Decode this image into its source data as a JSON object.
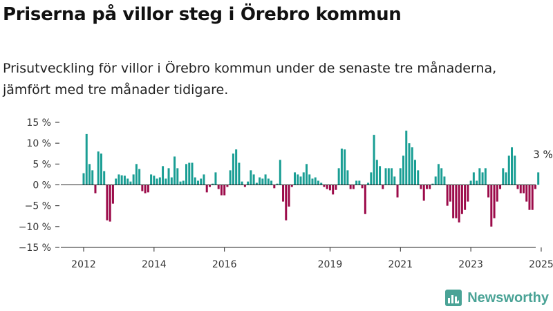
{
  "header": {
    "title": "Priserna på villor steg i Örebro kommun",
    "subtitle": "Prisutveckling för villor i Örebro kommun under de senaste tre månaderna, jämfört med tre månader tidigare."
  },
  "brand": {
    "name": "Newsworthy",
    "icon": "newsworthy-bar-chart-icon"
  },
  "colors": {
    "positive": "#1a9e94",
    "negative": "#9c0b4a",
    "axis": "#222222",
    "annotation": "#222222"
  },
  "chart_data": {
    "type": "bar",
    "x_start": "2012-01",
    "x_end": "2025-02",
    "y_range": [
      -15,
      15
    ],
    "y_ticks": [
      "15 %",
      "10 %",
      "5 %",
      "0 %",
      "−5 %",
      "−10 %",
      "−15 %"
    ],
    "y_tick_values": [
      15,
      10,
      5,
      0,
      -5,
      -10,
      -15
    ],
    "x_ticks": [
      {
        "label": "2012",
        "date": "2012-01"
      },
      {
        "label": "2014",
        "date": "2014-01"
      },
      {
        "label": "2016",
        "date": "2016-01"
      },
      {
        "label": "2019",
        "date": "2019-01"
      },
      {
        "label": "2021",
        "date": "2021-01"
      },
      {
        "label": "2023",
        "date": "2023-01"
      },
      {
        "label": "2025",
        "date": "2025-01"
      }
    ],
    "grid": false,
    "annotation": {
      "text": "3 %",
      "date": "2025-02",
      "value": 3
    },
    "values": [
      2.8,
      12.2,
      5.0,
      3.5,
      -2.0,
      8.0,
      7.5,
      3.3,
      -8.5,
      -8.8,
      -4.5,
      1.5,
      2.5,
      2.3,
      2.2,
      1.5,
      0.8,
      2.5,
      5.0,
      3.8,
      -1.5,
      -2.0,
      -1.8,
      2.5,
      2.2,
      1.5,
      1.8,
      4.5,
      1.5,
      4.0,
      1.8,
      6.8,
      4.0,
      0.8,
      1.0,
      5.0,
      5.3,
      5.3,
      1.8,
      1.0,
      1.5,
      2.5,
      -1.8,
      -0.5,
      0.3,
      3.0,
      -1.0,
      -2.5,
      -2.5,
      -0.5,
      3.5,
      7.5,
      8.5,
      5.3,
      0.8,
      -0.5,
      0.8,
      3.5,
      2.5,
      0.5,
      1.8,
      1.5,
      2.5,
      1.5,
      1.0,
      -0.8,
      0.3,
      6.0,
      -4.0,
      -8.5,
      -5.2,
      -0.5,
      3.0,
      2.5,
      2.0,
      3.0,
      5.0,
      2.5,
      1.5,
      1.8,
      1.0,
      0.5,
      -0.5,
      -1.0,
      -1.3,
      -2.3,
      -1.2,
      4.0,
      8.7,
      8.5,
      3.5,
      -1.0,
      -1.0,
      1.0,
      1.0,
      -0.8,
      -7.0,
      0.5,
      3.0,
      12.0,
      6.0,
      4.5,
      -1.0,
      4.0,
      4.0,
      4.0,
      2.0,
      -3.0,
      4.0,
      7.0,
      13.0,
      10.0,
      9.0,
      6.0,
      3.5,
      -1.0,
      -3.8,
      -1.0,
      -1.0,
      0.3,
      2.0,
      5.0,
      4.0,
      2.0,
      -5.0,
      -4.0,
      -8.0,
      -8.0,
      -9.0,
      -7.0,
      -6.0,
      -4.0,
      1.0,
      3.0,
      1.0,
      4.0,
      3.0,
      4.0,
      -3.0,
      -10.0,
      -8.0,
      -4.0,
      -1.0,
      4.0,
      3.0,
      7.0,
      9.0,
      7.0,
      -1.0,
      -2.0,
      -2.0,
      -4.0,
      -6.0,
      -6.0,
      -1.0,
      3.0
    ]
  }
}
